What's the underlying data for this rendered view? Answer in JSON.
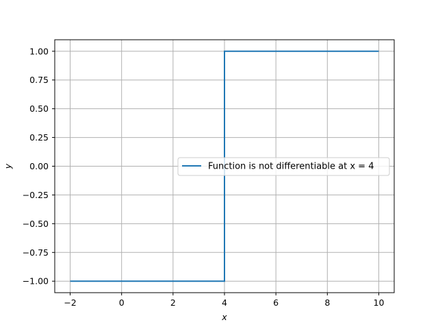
{
  "chart_data": {
    "type": "line",
    "title": "",
    "xlabel": "x",
    "ylabel": "y",
    "xlim": [
      -2.6,
      10.6
    ],
    "ylim": [
      -1.1,
      1.1
    ],
    "x_ticks": [
      -2,
      0,
      2,
      4,
      6,
      8,
      10
    ],
    "x_tick_labels": [
      "−2",
      "0",
      "2",
      "4",
      "6",
      "8",
      "10"
    ],
    "y_ticks": [
      -1.0,
      -0.75,
      -0.5,
      -0.25,
      0.0,
      0.25,
      0.5,
      0.75,
      1.0
    ],
    "y_tick_labels": [
      "−1.00",
      "−0.75",
      "−0.50",
      "−0.25",
      "0.00",
      "0.25",
      "0.50",
      "0.75",
      "1.00"
    ],
    "grid": true,
    "legend_position": "center-right",
    "series": [
      {
        "name": "Function is not differentiable at x = 4",
        "color": "#1f77b4",
        "points": [
          [
            -2,
            -1
          ],
          [
            4,
            -1
          ],
          [
            4,
            1
          ],
          [
            10,
            1
          ]
        ]
      }
    ]
  }
}
